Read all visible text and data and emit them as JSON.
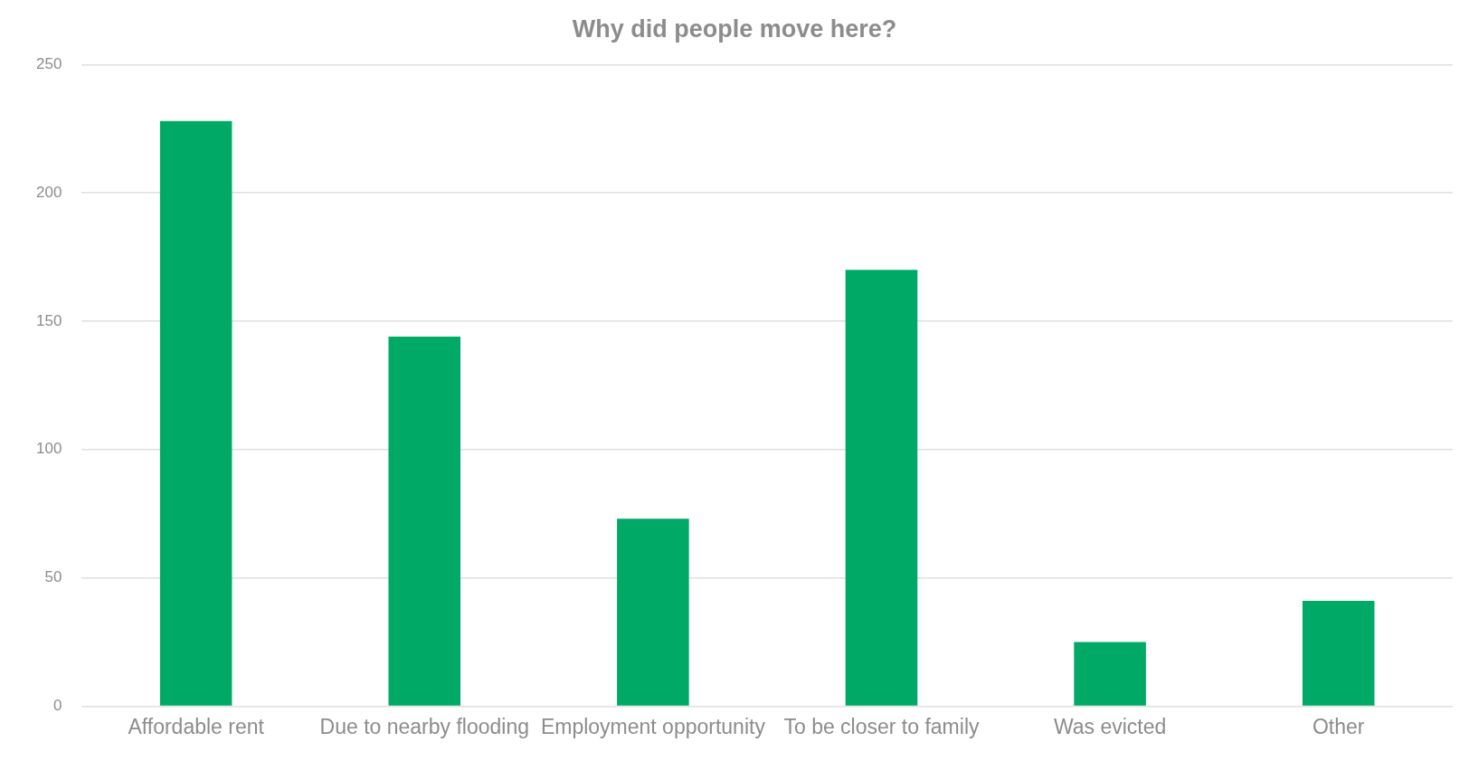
{
  "chart_data": {
    "type": "bar",
    "title": "Why did people move here?",
    "categories": [
      "Affordable rent",
      "Due to nearby flooding",
      "Employment opportunity",
      "To be closer to family",
      "Was evicted",
      "Other"
    ],
    "values": [
      228,
      144,
      73,
      170,
      25,
      41
    ],
    "color": "#00aa66",
    "ylim": [
      0,
      250
    ],
    "yticks": [
      0,
      50,
      100,
      150,
      200,
      250
    ],
    "grid": "y"
  }
}
